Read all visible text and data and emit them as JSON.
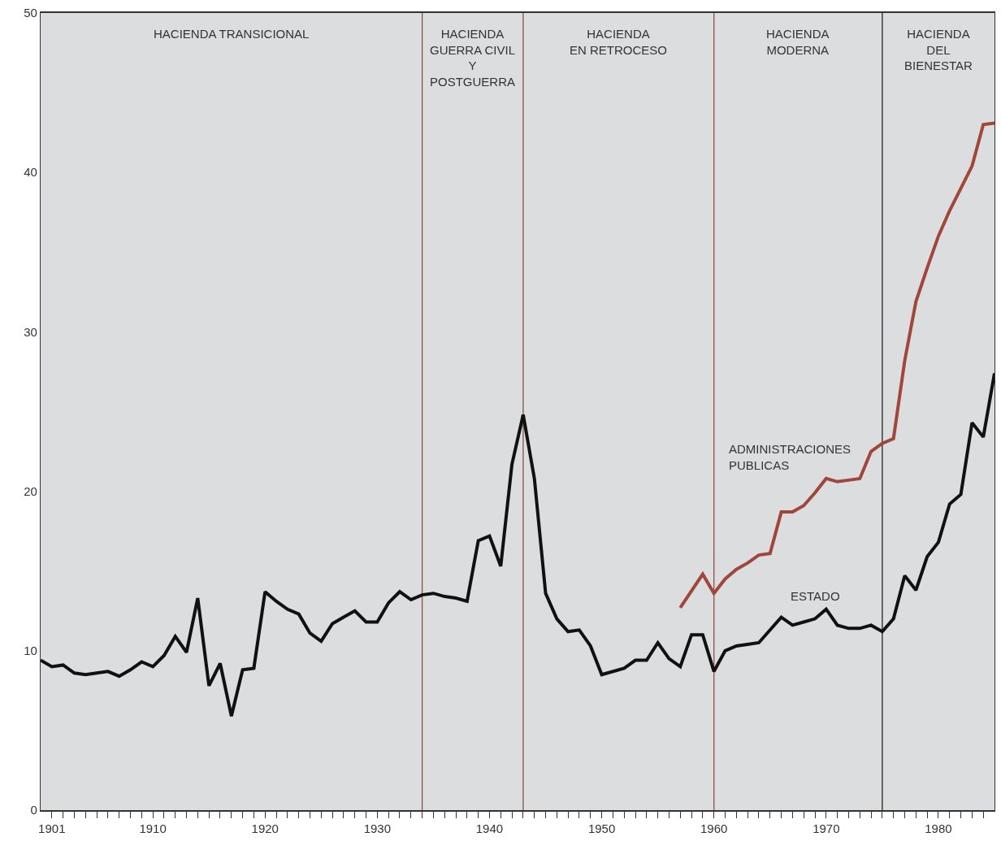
{
  "chart_data": {
    "type": "line",
    "series": [
      {
        "name": "ESTADO",
        "color": "#111111",
        "x": [
          1900,
          1901,
          1902,
          1903,
          1904,
          1905,
          1906,
          1907,
          1908,
          1909,
          1910,
          1911,
          1912,
          1913,
          1914,
          1915,
          1916,
          1917,
          1918,
          1919,
          1920,
          1921,
          1922,
          1923,
          1924,
          1925,
          1926,
          1927,
          1928,
          1929,
          1930,
          1931,
          1932,
          1933,
          1934,
          1935,
          1936,
          1937,
          1938,
          1939,
          1940,
          1941,
          1942,
          1943,
          1944,
          1945,
          1946,
          1947,
          1948,
          1949,
          1950,
          1952,
          1953,
          1954,
          1955,
          1956,
          1957,
          1958,
          1959,
          1960,
          1961,
          1962,
          1963,
          1964,
          1965,
          1966,
          1967,
          1968,
          1969,
          1970,
          1971,
          1972,
          1973,
          1974,
          1975,
          1976,
          1977,
          1978,
          1979,
          1980,
          1981,
          1982,
          1983,
          1984,
          1985
        ],
        "values": [
          9.4,
          9.0,
          9.1,
          8.6,
          8.5,
          8.6,
          8.7,
          8.4,
          8.8,
          9.3,
          9.0,
          9.7,
          10.9,
          9.9,
          13.3,
          7.8,
          9.2,
          5.9,
          8.8,
          8.9,
          13.7,
          13.1,
          12.6,
          12.3,
          11.1,
          10.6,
          11.7,
          12.1,
          12.5,
          11.8,
          11.8,
          13.0,
          13.7,
          13.2,
          13.5,
          13.6,
          13.4,
          13.3,
          13.1,
          16.9,
          17.2,
          15.3,
          21.7,
          24.8,
          20.8,
          13.6,
          12.0,
          11.2,
          11.3,
          10.3,
          8.5,
          8.9,
          9.4,
          9.4,
          10.5,
          9.5,
          9.0,
          11.0,
          11.0,
          8.7,
          10.0,
          10.3,
          10.4,
          10.5,
          11.3,
          12.1,
          11.6,
          11.8,
          12.0,
          12.6,
          11.6,
          11.4,
          11.4,
          11.6,
          11.2,
          12.0,
          14.7,
          13.8,
          15.9,
          16.8,
          19.2,
          19.8,
          24.3,
          23.4,
          27.4
        ]
      },
      {
        "name": "ADMINISTRACIONES PUBLICAS",
        "color": "#a0463a",
        "x": [
          1957,
          1959,
          1960,
          1961,
          1962,
          1963,
          1964,
          1965,
          1966,
          1967,
          1968,
          1969,
          1970,
          1971,
          1972,
          1973,
          1974,
          1975,
          1976,
          1977,
          1978,
          1979,
          1980,
          1981,
          1982,
          1983,
          1984,
          1985
        ],
        "values": [
          12.7,
          14.8,
          13.6,
          14.5,
          15.1,
          15.5,
          16.0,
          16.1,
          18.7,
          18.7,
          19.1,
          19.9,
          20.8,
          20.6,
          20.7,
          20.8,
          22.5,
          23.0,
          23.3,
          28.2,
          31.9,
          34.0,
          36.0,
          37.6,
          39.0,
          40.4,
          43.0,
          43.1
        ]
      }
    ],
    "xlim": [
      1900,
      1985
    ],
    "ylim": [
      0,
      50
    ],
    "xticks": [
      1901,
      {
        "value": 1902,
        "label": null
      },
      {
        "value": 1903,
        "label": null
      },
      {
        "value": 1904,
        "label": null
      },
      {
        "value": 1905,
        "label": null
      },
      {
        "value": 1906,
        "label": null
      },
      {
        "value": 1907,
        "label": null
      },
      {
        "value": 1908,
        "label": null
      },
      {
        "value": 1909,
        "label": null
      },
      1910,
      {
        "value": 1911,
        "label": null
      },
      {
        "value": 1912,
        "label": null
      },
      {
        "value": 1913,
        "label": null
      },
      {
        "value": 1914,
        "label": null
      },
      {
        "value": 1915,
        "label": null
      },
      {
        "value": 1916,
        "label": null
      },
      {
        "value": 1917,
        "label": null
      },
      {
        "value": 1918,
        "label": null
      },
      {
        "value": 1919,
        "label": null
      },
      1920,
      {
        "value": 1921,
        "label": null
      },
      {
        "value": 1922,
        "label": null
      },
      {
        "value": 1923,
        "label": null
      },
      {
        "value": 1924,
        "label": null
      },
      {
        "value": 1925,
        "label": null
      },
      {
        "value": 1926,
        "label": null
      },
      {
        "value": 1927,
        "label": null
      },
      {
        "value": 1928,
        "label": null
      },
      {
        "value": 1929,
        "label": null
      },
      1930,
      {
        "value": 1931,
        "label": null
      },
      {
        "value": 1932,
        "label": null
      },
      {
        "value": 1933,
        "label": null
      },
      {
        "value": 1934,
        "label": null
      },
      {
        "value": 1935,
        "label": null
      },
      {
        "value": 1936,
        "label": null
      },
      {
        "value": 1937,
        "label": null
      },
      {
        "value": 1938,
        "label": null
      },
      {
        "value": 1939,
        "label": null
      },
      1940,
      {
        "value": 1941,
        "label": null
      },
      {
        "value": 1942,
        "label": null
      },
      {
        "value": 1943,
        "label": null
      },
      {
        "value": 1944,
        "label": null
      },
      {
        "value": 1945,
        "label": null
      },
      {
        "value": 1946,
        "label": null
      },
      {
        "value": 1947,
        "label": null
      },
      {
        "value": 1948,
        "label": null
      },
      {
        "value": 1949,
        "label": null
      },
      1950,
      {
        "value": 1951,
        "label": null
      },
      {
        "value": 1952,
        "label": null
      },
      {
        "value": 1953,
        "label": null
      },
      {
        "value": 1954,
        "label": null
      },
      {
        "value": 1955,
        "label": null
      },
      {
        "value": 1956,
        "label": null
      },
      {
        "value": 1957,
        "label": null
      },
      {
        "value": 1958,
        "label": null
      },
      {
        "value": 1959,
        "label": null
      },
      1960,
      {
        "value": 1961,
        "label": null
      },
      {
        "value": 1962,
        "label": null
      },
      {
        "value": 1963,
        "label": null
      },
      {
        "value": 1964,
        "label": null
      },
      {
        "value": 1965,
        "label": null
      },
      {
        "value": 1966,
        "label": null
      },
      {
        "value": 1967,
        "label": null
      },
      {
        "value": 1968,
        "label": null
      },
      {
        "value": 1969,
        "label": null
      },
      1970,
      {
        "value": 1971,
        "label": null
      },
      {
        "value": 1972,
        "label": null
      },
      {
        "value": 1973,
        "label": null
      },
      {
        "value": 1974,
        "label": null
      },
      {
        "value": 1975,
        "label": null
      },
      {
        "value": 1976,
        "label": null
      },
      {
        "value": 1977,
        "label": null
      },
      {
        "value": 1978,
        "label": null
      },
      {
        "value": 1979,
        "label": null
      },
      1980,
      {
        "value": 1981,
        "label": null
      },
      {
        "value": 1982,
        "label": null
      },
      {
        "value": 1983,
        "label": null
      },
      {
        "value": 1984,
        "label": null
      }
    ],
    "yticks": [
      0,
      10,
      20,
      30,
      40,
      50
    ],
    "ref_lines": [
      {
        "axis": "x",
        "value": 1934,
        "color": "#8a5050"
      },
      {
        "axis": "x",
        "value": 1943,
        "color": "#8a5050"
      },
      {
        "axis": "x",
        "value": 1960,
        "color": "#8a5050"
      },
      {
        "axis": "x",
        "value": 1975,
        "color": "#222222"
      }
    ],
    "annotations": [
      "HACIENDA TRANSICIONAL",
      "HACIENDA\nGUERRA CIVIL\nY\nPOSTGUERRA",
      "HACIENDA\nEN RETROCESO",
      "HACIENDA\nMODERNA",
      "HACIENDA\nDEL\nBIENESTAR"
    ],
    "grid": false,
    "legend": false,
    "marker": "none",
    "line_style": "solid"
  }
}
